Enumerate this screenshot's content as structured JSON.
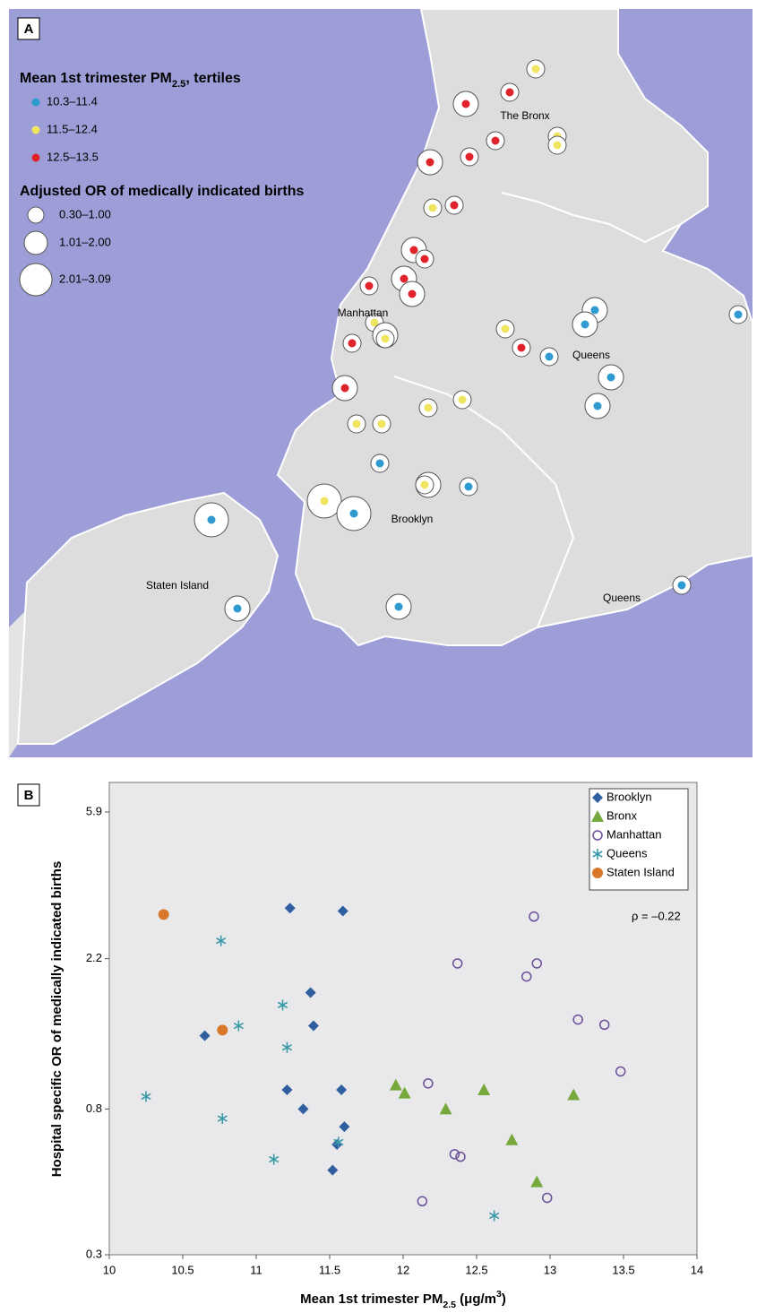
{
  "map": {
    "panel_label": "A",
    "legend": {
      "tertile_title": [
        {
          "text": "Mean 1st trimester PM"
        },
        {
          "text": "2.5",
          "sub": true
        },
        {
          "text": ", tertiles"
        }
      ],
      "tertiles": [
        {
          "label": "10.3–11.4",
          "color": "#2e9ad0"
        },
        {
          "label": "11.5–12.4",
          "color": "#f0e560"
        },
        {
          "label": "12.5–13.5",
          "color": "#e0222b"
        }
      ],
      "or_title": "Adjusted OR of medically indicated births",
      "or_classes": [
        "0.30–1.00",
        "1.01–2.00",
        "2.01–3.09"
      ]
    },
    "labels": [
      "The Bronx",
      "Manhattan",
      "Queens",
      "Brooklyn",
      "Staten Island",
      "Queens"
    ]
  },
  "chart_data": {
    "type": "scatter",
    "panel_label": "B",
    "x_label": [
      {
        "text": "Mean 1st trimester PM"
      },
      {
        "text": "2.5",
        "sub": true
      },
      {
        "text": " (μg/m"
      },
      {
        "text": "3",
        "sup": true
      },
      {
        "text": ")"
      }
    ],
    "y_label": "Hospital specific OR of medically indicated births",
    "annotation": "ρ = –0.22",
    "xlim": [
      10,
      14
    ],
    "xticks": [
      10,
      10.5,
      11,
      11.5,
      12,
      12.5,
      13,
      13.5,
      14
    ],
    "ylim": [
      0.3,
      7.2
    ],
    "yticks": [
      0.3,
      0.8,
      2.2,
      5.9
    ],
    "log_y": true,
    "grid": false,
    "legend": "top-right",
    "series": [
      {
        "name": "Brooklyn",
        "color": "#2f5f9e",
        "marker": "diamond",
        "x": [
          11.23,
          11.59,
          11.37,
          11.39,
          10.65,
          11.21,
          11.58,
          11.32,
          11.6,
          11.55,
          11.52
        ],
        "values": [
          3.09,
          3.03,
          1.75,
          1.4,
          1.31,
          0.91,
          0.91,
          0.8,
          0.71,
          0.63,
          0.53
        ]
      },
      {
        "name": "Bronx",
        "color": "#76a83b",
        "marker": "triangle",
        "x": [
          11.95,
          12.01,
          12.55,
          12.29,
          13.16,
          12.74,
          12.91
        ],
        "values": [
          0.94,
          0.89,
          0.91,
          0.8,
          0.88,
          0.65,
          0.49
        ]
      },
      {
        "name": "Manhattan",
        "color": "#6b4f9a",
        "marker": "open-circle",
        "x": [
          12.89,
          12.37,
          12.91,
          12.84,
          13.19,
          13.37,
          13.48,
          12.17,
          12.35,
          12.39,
          12.13,
          12.98
        ],
        "values": [
          2.92,
          2.13,
          2.13,
          1.95,
          1.46,
          1.41,
          1.03,
          0.95,
          0.59,
          0.58,
          0.43,
          0.44
        ]
      },
      {
        "name": "Queens",
        "color": "#3a9aa8",
        "marker": "asterisk",
        "x": [
          10.76,
          11.18,
          10.88,
          11.21,
          10.25,
          10.77,
          11.56,
          11.12,
          12.62
        ],
        "values": [
          2.48,
          1.61,
          1.4,
          1.21,
          0.87,
          0.75,
          0.64,
          0.57,
          0.39
        ]
      },
      {
        "name": "Staten Island",
        "color": "#d9782a",
        "marker": "circle",
        "x": [
          10.37,
          10.77
        ],
        "values": [
          2.96,
          1.36
        ]
      }
    ]
  }
}
